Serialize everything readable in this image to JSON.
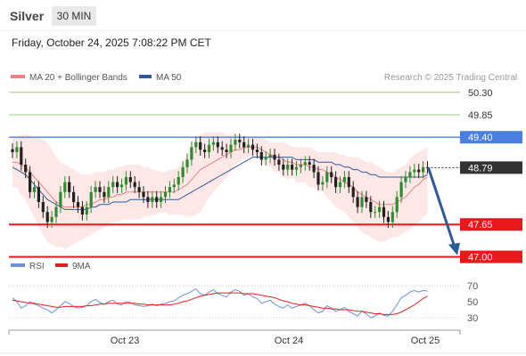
{
  "header": {
    "instrument": "Silver",
    "timeframe": "30 MIN",
    "datetime": "Friday, October 24, 2025 7:08:22 PM CET"
  },
  "legend": {
    "ma20": "MA 20 + Bollinger Bands",
    "ma50": "MA 50",
    "copyright": "Research © 2025 Trading Central",
    "rsi": "RSI",
    "ma9": "9MA"
  },
  "colors": {
    "ma20": "#f08080",
    "ma50": "#2e5a9c",
    "band_fill": "#fde3e3",
    "up": "#2e8b2e",
    "down": "#222222",
    "support": "#e8191a",
    "resistance_green": "#9ccc7c",
    "resistance_blue": "#4a7fe0",
    "current": "#333333",
    "rsi": "#6f8fd8",
    "rsi_ma": "#e02020",
    "arrow": "#2e5a9c"
  },
  "chart_data": [
    {
      "type": "candlestick",
      "ylim": [
        46.85,
        50.6
      ],
      "x_ticks": [
        "Oct 23",
        "Oct 24",
        "Oct 25"
      ],
      "levels": [
        {
          "value": 50.3,
          "label": "50.30",
          "kind": "resistance"
        },
        {
          "value": 49.85,
          "label": "49.85",
          "kind": "resistance"
        },
        {
          "value": 49.4,
          "label": "49.40",
          "kind": "pivot"
        },
        {
          "value": 48.79,
          "label": "48.79",
          "kind": "current"
        },
        {
          "value": 47.65,
          "label": "47.65",
          "kind": "support"
        },
        {
          "value": 47.0,
          "label": "47.00",
          "kind": "support"
        }
      ],
      "close": [
        49.1,
        49.2,
        48.85,
        48.7,
        48.3,
        48.4,
        48.1,
        47.9,
        47.7,
        47.8,
        48.0,
        48.3,
        48.5,
        48.3,
        48.1,
        48.0,
        47.85,
        48.0,
        48.3,
        48.4,
        48.3,
        48.2,
        48.4,
        48.5,
        48.4,
        48.45,
        48.6,
        48.5,
        48.4,
        48.3,
        48.2,
        48.1,
        48.2,
        48.1,
        48.2,
        48.3,
        48.4,
        48.45,
        48.6,
        48.8,
        48.95,
        49.2,
        49.3,
        49.15,
        49.1,
        49.25,
        49.3,
        49.2,
        49.15,
        49.1,
        49.25,
        49.35,
        49.3,
        49.2,
        49.25,
        49.15,
        49.1,
        48.95,
        49.0,
        49.05,
        48.95,
        48.85,
        48.75,
        48.85,
        48.75,
        48.8,
        48.85,
        48.9,
        48.85,
        48.7,
        48.45,
        48.5,
        48.7,
        48.6,
        48.4,
        48.5,
        48.6,
        48.4,
        48.2,
        48.0,
        48.2,
        48.1,
        47.9,
        47.9,
        48.0,
        47.8,
        47.7,
        47.9,
        48.2,
        48.5,
        48.6,
        48.7,
        48.75,
        48.7,
        48.8,
        48.79
      ],
      "ma20": [
        48.9,
        48.9,
        48.85,
        48.8,
        48.7,
        48.6,
        48.5,
        48.4,
        48.3,
        48.2,
        48.1,
        48.05,
        48.0,
        48.0,
        48.0,
        48.0,
        48.0,
        48.05,
        48.05,
        48.1,
        48.15,
        48.15,
        48.2,
        48.2,
        48.25,
        48.25,
        48.3,
        48.3,
        48.3,
        48.3,
        48.3,
        48.3,
        48.3,
        48.3,
        48.3,
        48.3,
        48.3,
        48.3,
        48.35,
        48.4,
        48.45,
        48.55,
        48.65,
        48.75,
        48.8,
        48.85,
        48.9,
        48.95,
        49.0,
        49.05,
        49.1,
        49.15,
        49.15,
        49.2,
        49.2,
        49.2,
        49.2,
        49.15,
        49.1,
        49.05,
        49.0,
        49.0,
        48.95,
        48.9,
        48.9,
        48.85,
        48.85,
        48.85,
        48.8,
        48.8,
        48.75,
        48.75,
        48.7,
        48.65,
        48.6,
        48.55,
        48.5,
        48.45,
        48.4,
        48.3,
        48.25,
        48.2,
        48.15,
        48.1,
        48.05,
        48.05,
        48.05,
        48.05,
        48.1,
        48.15,
        48.2,
        48.3,
        48.4,
        48.45,
        48.55,
        48.6
      ],
      "bb_upper": [
        49.4,
        49.4,
        49.45,
        49.45,
        49.45,
        49.4,
        49.4,
        49.35,
        49.3,
        49.15,
        49.0,
        48.9,
        48.85,
        48.8,
        48.75,
        48.7,
        48.65,
        48.65,
        48.65,
        48.7,
        48.7,
        48.7,
        48.75,
        48.75,
        48.8,
        48.8,
        48.85,
        48.85,
        48.85,
        48.85,
        48.8,
        48.8,
        48.75,
        48.75,
        48.7,
        48.7,
        48.75,
        48.75,
        48.8,
        48.9,
        49.05,
        49.25,
        49.4,
        49.45,
        49.5,
        49.5,
        49.5,
        49.5,
        49.5,
        49.45,
        49.45,
        49.45,
        49.4,
        49.4,
        49.4,
        49.4,
        49.4,
        49.4,
        49.35,
        49.3,
        49.3,
        49.3,
        49.3,
        49.25,
        49.2,
        49.2,
        49.2,
        49.2,
        49.2,
        49.15,
        49.1,
        49.1,
        49.1,
        49.1,
        49.1,
        49.05,
        49.05,
        49.0,
        49.0,
        49.0,
        48.95,
        48.9,
        48.9,
        48.85,
        48.8,
        48.75,
        48.7,
        48.7,
        48.75,
        48.8,
        48.85,
        48.95,
        49.05,
        49.1,
        49.15,
        49.2
      ],
      "bb_lower": [
        48.4,
        48.4,
        48.25,
        48.15,
        47.95,
        47.8,
        47.6,
        47.45,
        47.3,
        47.25,
        47.2,
        47.2,
        47.15,
        47.2,
        47.25,
        47.3,
        47.35,
        47.4,
        47.45,
        47.5,
        47.55,
        47.6,
        47.65,
        47.7,
        47.7,
        47.75,
        47.75,
        47.75,
        47.75,
        47.75,
        47.8,
        47.8,
        47.85,
        47.85,
        47.9,
        47.9,
        47.85,
        47.85,
        47.85,
        47.85,
        47.8,
        47.8,
        47.85,
        47.9,
        48.05,
        48.2,
        48.3,
        48.4,
        48.5,
        48.6,
        48.7,
        48.85,
        48.9,
        49.0,
        49.0,
        49.0,
        49.0,
        48.9,
        48.85,
        48.8,
        48.7,
        48.7,
        48.6,
        48.55,
        48.6,
        48.5,
        48.5,
        48.5,
        48.4,
        48.4,
        48.35,
        48.3,
        48.2,
        48.1,
        48.0,
        47.95,
        47.9,
        47.8,
        47.7,
        47.6,
        47.5,
        47.45,
        47.4,
        47.35,
        47.3,
        47.3,
        47.35,
        47.4,
        47.4,
        47.45,
        47.5,
        47.55,
        47.65,
        47.7,
        47.8,
        47.85
      ],
      "ma50": [
        48.8,
        48.75,
        48.7,
        48.65,
        48.55,
        48.45,
        48.35,
        48.25,
        48.15,
        48.1,
        48.05,
        48.0,
        47.95,
        47.95,
        47.95,
        47.95,
        47.95,
        47.95,
        48.0,
        48.0,
        48.05,
        48.05,
        48.05,
        48.1,
        48.1,
        48.1,
        48.1,
        48.15,
        48.15,
        48.15,
        48.15,
        48.15,
        48.15,
        48.15,
        48.15,
        48.15,
        48.15,
        48.15,
        48.15,
        48.2,
        48.25,
        48.3,
        48.35,
        48.4,
        48.45,
        48.5,
        48.55,
        48.6,
        48.65,
        48.7,
        48.75,
        48.8,
        48.85,
        48.9,
        48.95,
        49.0,
        49.0,
        49.0,
        49.0,
        49.0,
        49.0,
        49.0,
        49.0,
        49.0,
        49.0,
        48.95,
        48.95,
        48.95,
        48.95,
        48.95,
        48.9,
        48.9,
        48.9,
        48.9,
        48.85,
        48.85,
        48.8,
        48.8,
        48.75,
        48.75,
        48.7,
        48.7,
        48.65,
        48.65,
        48.6,
        48.6,
        48.6,
        48.6,
        48.6,
        48.6,
        48.6,
        48.6,
        48.6,
        48.6,
        48.6,
        48.65
      ]
    },
    {
      "type": "line",
      "ylim": [
        20,
        80
      ],
      "y_ticks": [
        30,
        50,
        70
      ],
      "rsi": [
        55,
        50,
        42,
        45,
        50,
        47,
        45,
        42,
        40,
        36,
        40,
        45,
        50,
        48,
        44,
        42,
        43,
        45,
        50,
        53,
        49,
        47,
        50,
        52,
        47,
        46,
        50,
        49,
        46,
        45,
        44,
        45,
        47,
        45,
        47,
        48,
        50,
        51,
        55,
        58,
        60,
        63,
        66,
        60,
        58,
        62,
        65,
        60,
        58,
        56,
        62,
        65,
        63,
        58,
        60,
        56,
        54,
        48,
        50,
        52,
        47,
        44,
        42,
        46,
        42,
        44,
        46,
        48,
        45,
        40,
        36,
        38,
        45,
        42,
        38,
        40,
        43,
        38,
        35,
        32,
        38,
        35,
        30,
        32,
        36,
        33,
        32,
        38,
        46,
        55,
        58,
        62,
        64,
        62,
        64,
        63
      ],
      "rsi_ma": [
        52,
        51,
        50,
        49,
        48,
        48,
        47,
        46,
        45,
        44,
        43,
        43,
        44,
        44,
        44,
        44,
        44,
        45,
        45,
        46,
        47,
        47,
        48,
        48,
        48,
        48,
        48,
        48,
        48,
        47,
        47,
        46,
        46,
        46,
        46,
        46,
        46,
        47,
        48,
        50,
        51,
        53,
        55,
        57,
        58,
        59,
        60,
        61,
        61,
        61,
        61,
        61,
        61,
        60,
        60,
        60,
        59,
        58,
        57,
        56,
        55,
        53,
        51,
        50,
        48,
        47,
        46,
        46,
        45,
        44,
        43,
        42,
        42,
        41,
        41,
        40,
        40,
        40,
        39,
        38,
        38,
        37,
        36,
        35,
        35,
        34,
        34,
        34,
        35,
        37,
        40,
        43,
        46,
        50,
        54,
        57
      ]
    }
  ]
}
